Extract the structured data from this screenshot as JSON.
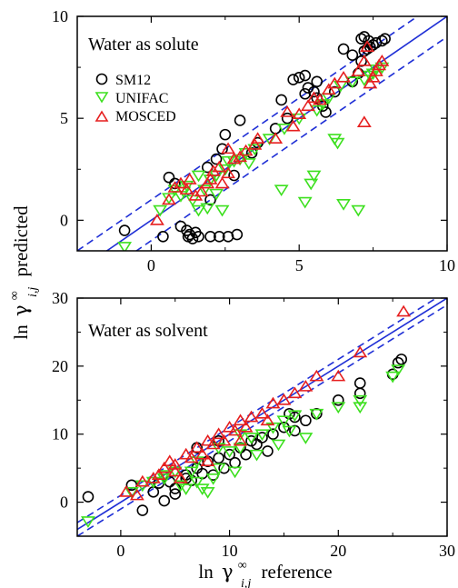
{
  "chart_data": [
    {
      "type": "scatter",
      "title": "",
      "annotation": "Water as solute",
      "xlim": [
        -2.5,
        10
      ],
      "ylim": [
        -1.5,
        10
      ],
      "xticks": [
        0,
        5,
        10
      ],
      "yticks": [
        0,
        5,
        10
      ],
      "xtick_labels": [
        "0",
        "5",
        "10"
      ],
      "ytick_labels": [
        "0",
        "5",
        "10"
      ],
      "legend_position": "top-left",
      "reference_lines": [
        {
          "slope": 1,
          "intercept": 0,
          "style": "solid",
          "color": "#1f2fd6"
        },
        {
          "slope": 1,
          "intercept": 1,
          "style": "dashed",
          "color": "#1f2fd6"
        },
        {
          "slope": 1,
          "intercept": -1,
          "style": "dashed",
          "color": "#1f2fd6"
        }
      ],
      "series": [
        {
          "name": "SM12",
          "marker": "circle",
          "color": "#000000",
          "points": [
            [
              -0.9,
              -0.5
            ],
            [
              0.4,
              -0.8
            ],
            [
              0.8,
              1.8
            ],
            [
              0.6,
              2.1
            ],
            [
              1.0,
              -0.3
            ],
            [
              1.2,
              -0.5
            ],
            [
              1.3,
              -0.7
            ],
            [
              1.4,
              -0.9
            ],
            [
              1.25,
              -0.8
            ],
            [
              1.5,
              -0.6
            ],
            [
              1.6,
              -0.8
            ],
            [
              2.0,
              -0.8
            ],
            [
              2.3,
              -0.8
            ],
            [
              2.6,
              -0.8
            ],
            [
              2.9,
              -0.7
            ],
            [
              1.9,
              2.6
            ],
            [
              2.2,
              3.0
            ],
            [
              2.4,
              3.5
            ],
            [
              2.5,
              4.2
            ],
            [
              2.8,
              2.2
            ],
            [
              3.0,
              4.9
            ],
            [
              3.4,
              3.3
            ],
            [
              3.6,
              3.8
            ],
            [
              2.0,
              1.0
            ],
            [
              4.2,
              4.5
            ],
            [
              4.4,
              5.9
            ],
            [
              4.6,
              5.0
            ],
            [
              4.8,
              6.9
            ],
            [
              5.0,
              7.0
            ],
            [
              5.2,
              6.2
            ],
            [
              5.3,
              6.5
            ],
            [
              5.5,
              6.3
            ],
            [
              5.6,
              6.8
            ],
            [
              5.8,
              5.6
            ],
            [
              5.2,
              7.1
            ],
            [
              5.6,
              6.0
            ],
            [
              5.9,
              5.3
            ],
            [
              6.2,
              6.3
            ],
            [
              6.5,
              8.4
            ],
            [
              6.8,
              6.8
            ],
            [
              7.0,
              7.2
            ],
            [
              7.1,
              7.8
            ],
            [
              7.2,
              8.3
            ],
            [
              6.8,
              8.1
            ],
            [
              7.3,
              8.4
            ],
            [
              7.4,
              8.5
            ],
            [
              7.5,
              8.6
            ],
            [
              7.2,
              9.0
            ],
            [
              7.6,
              8.7
            ],
            [
              7.8,
              8.8
            ],
            [
              7.9,
              8.9
            ],
            [
              7.1,
              8.9
            ],
            [
              7.35,
              8.8
            ]
          ]
        },
        {
          "name": "UNIFAC",
          "marker": "triangle-down",
          "color": "#3de01f",
          "points": [
            [
              -0.9,
              -1.3
            ],
            [
              0.3,
              0.5
            ],
            [
              0.6,
              1.1
            ],
            [
              0.8,
              1.5
            ],
            [
              1.0,
              1.2
            ],
            [
              1.2,
              1.7
            ],
            [
              1.4,
              1.0
            ],
            [
              1.6,
              0.5
            ],
            [
              1.8,
              1.5
            ],
            [
              2.0,
              2.0
            ],
            [
              2.2,
              2.2
            ],
            [
              2.5,
              2.5
            ],
            [
              2.8,
              2.9
            ],
            [
              3.0,
              3.0
            ],
            [
              3.2,
              3.3
            ],
            [
              1.6,
              2.2
            ],
            [
              1.9,
              0.6
            ],
            [
              2.2,
              1.3
            ],
            [
              2.4,
              0.5
            ],
            [
              2.6,
              2.9
            ],
            [
              3.5,
              3.5
            ],
            [
              4.0,
              4.0
            ],
            [
              4.4,
              1.5
            ],
            [
              4.5,
              4.5
            ],
            [
              5.0,
              5.0
            ],
            [
              5.2,
              0.9
            ],
            [
              5.4,
              1.8
            ],
            [
              5.5,
              2.2
            ],
            [
              5.6,
              5.4
            ],
            [
              5.8,
              5.7
            ],
            [
              6.0,
              6.0
            ],
            [
              6.2,
              4.0
            ],
            [
              6.3,
              3.8
            ],
            [
              6.4,
              6.6
            ],
            [
              6.5,
              0.8
            ],
            [
              6.8,
              6.8
            ],
            [
              7.0,
              0.5
            ],
            [
              7.2,
              6.9
            ],
            [
              7.4,
              7.1
            ],
            [
              7.5,
              7.2
            ],
            [
              7.8,
              7.5
            ],
            [
              7.6,
              7.4
            ],
            [
              1.1,
              1.4
            ],
            [
              3.3,
              2.8
            ]
          ]
        },
        {
          "name": "MOSCED",
          "marker": "triangle-up",
          "color": "#e61f1f",
          "points": [
            [
              0.2,
              0.0
            ],
            [
              0.6,
              1.0
            ],
            [
              0.8,
              1.6
            ],
            [
              1.0,
              1.8
            ],
            [
              1.2,
              1.5
            ],
            [
              1.3,
              2.0
            ],
            [
              1.5,
              1.2
            ],
            [
              1.7,
              1.4
            ],
            [
              1.9,
              1.8
            ],
            [
              2.1,
              2.4
            ],
            [
              2.3,
              2.6
            ],
            [
              2.4,
              1.8
            ],
            [
              2.6,
              2.3
            ],
            [
              2.8,
              3.0
            ],
            [
              3.0,
              3.1
            ],
            [
              3.2,
              3.4
            ],
            [
              3.5,
              3.7
            ],
            [
              3.6,
              4.0
            ],
            [
              4.2,
              4.0
            ],
            [
              4.6,
              5.3
            ],
            [
              4.8,
              4.6
            ],
            [
              5.0,
              5.2
            ],
            [
              5.3,
              5.6
            ],
            [
              5.5,
              6.0
            ],
            [
              5.7,
              5.9
            ],
            [
              6.0,
              6.4
            ],
            [
              6.2,
              6.7
            ],
            [
              6.5,
              7.0
            ],
            [
              7.0,
              7.3
            ],
            [
              7.2,
              4.8
            ],
            [
              7.4,
              6.7
            ],
            [
              7.5,
              7.0
            ],
            [
              7.6,
              7.3
            ],
            [
              7.7,
              7.6
            ],
            [
              7.8,
              7.8
            ],
            [
              7.3,
              8.5
            ],
            [
              7.2,
              7.8
            ],
            [
              2.6,
              3.5
            ],
            [
              2.0,
              2.0
            ]
          ]
        }
      ]
    },
    {
      "type": "scatter",
      "title": "",
      "annotation": "Water as solvent",
      "xlim": [
        -4,
        30
      ],
      "ylim": [
        -5,
        30
      ],
      "xticks": [
        0,
        10,
        20,
        30
      ],
      "yticks": [
        0,
        10,
        20,
        30
      ],
      "xtick_labels": [
        "0",
        "10",
        "20",
        "30"
      ],
      "ytick_labels": [
        "0",
        "10",
        "20",
        "30"
      ],
      "reference_lines": [
        {
          "slope": 1,
          "intercept": 0,
          "style": "solid",
          "color": "#1f2fd6"
        },
        {
          "slope": 1,
          "intercept": 1,
          "style": "dashed",
          "color": "#1f2fd6"
        },
        {
          "slope": 1,
          "intercept": -1,
          "style": "dashed",
          "color": "#1f2fd6"
        }
      ],
      "series": [
        {
          "name": "SM12",
          "marker": "circle",
          "color": "#000000",
          "points": [
            [
              -3,
              0.8
            ],
            [
              1,
              2.5
            ],
            [
              2,
              -1.2
            ],
            [
              3,
              1.5
            ],
            [
              4,
              0.2
            ],
            [
              4.5,
              3.0
            ],
            [
              5,
              2.0
            ],
            [
              5,
              1.2
            ],
            [
              6,
              4.0
            ],
            [
              6.5,
              3.2
            ],
            [
              7,
              5.0
            ],
            [
              7.5,
              4.2
            ],
            [
              8,
              6.0
            ],
            [
              8.5,
              4.0
            ],
            [
              9,
              6.5
            ],
            [
              9.5,
              5.0
            ],
            [
              10,
              7.0
            ],
            [
              10.5,
              5.8
            ],
            [
              11,
              8.0
            ],
            [
              11.5,
              7.0
            ],
            [
              12,
              9.0
            ],
            [
              12.5,
              8.5
            ],
            [
              13,
              9.5
            ],
            [
              13.5,
              7.5
            ],
            [
              14,
              10.0
            ],
            [
              15,
              11.0
            ],
            [
              15.5,
              13.0
            ],
            [
              16,
              12.5
            ],
            [
              16,
              10.5
            ],
            [
              17,
              12.0
            ],
            [
              18,
              13.0
            ],
            [
              20,
              15.0
            ],
            [
              22,
              17.5
            ],
            [
              22,
              16.0
            ],
            [
              25,
              18.8
            ],
            [
              25.5,
              20.5
            ],
            [
              25.8,
              21.0
            ],
            [
              7,
              8.0
            ],
            [
              9,
              9.0
            ],
            [
              3.5,
              2.8
            ],
            [
              6,
              3.5
            ]
          ]
        },
        {
          "name": "UNIFAC",
          "marker": "triangle-down",
          "color": "#3de01f",
          "points": [
            [
              -3,
              -2.8
            ],
            [
              1,
              1.5
            ],
            [
              2,
              2.5
            ],
            [
              3,
              3.0
            ],
            [
              4,
              4.0
            ],
            [
              5,
              4.5
            ],
            [
              5.5,
              2.5
            ],
            [
              6,
              2.0
            ],
            [
              6.5,
              4.5
            ],
            [
              7,
              3.0
            ],
            [
              7.5,
              2.0
            ],
            [
              8,
              1.5
            ],
            [
              8.5,
              3.5
            ],
            [
              9,
              5.0
            ],
            [
              10,
              7.5
            ],
            [
              10.5,
              4.5
            ],
            [
              11,
              8.0
            ],
            [
              12,
              9.5
            ],
            [
              12.5,
              7.0
            ],
            [
              13,
              10.0
            ],
            [
              14,
              11.0
            ],
            [
              14.5,
              8.5
            ],
            [
              15,
              12.0
            ],
            [
              15.5,
              10.5
            ],
            [
              16,
              12.8
            ],
            [
              17,
              9.5
            ],
            [
              18,
              13.0
            ],
            [
              20,
              14.0
            ],
            [
              22,
              15.0
            ],
            [
              22,
              14.0
            ],
            [
              25,
              18.5
            ],
            [
              25.5,
              19.5
            ],
            [
              4,
              3.5
            ],
            [
              7,
              6.0
            ],
            [
              9,
              8.0
            ],
            [
              11,
              10.0
            ]
          ]
        },
        {
          "name": "MOSCED",
          "marker": "triangle-up",
          "color": "#e61f1f",
          "points": [
            [
              0.5,
              1.5
            ],
            [
              1.5,
              1.0
            ],
            [
              2,
              3.0
            ],
            [
              3,
              3.5
            ],
            [
              3.5,
              4.0
            ],
            [
              4,
              5.0
            ],
            [
              4.5,
              6.0
            ],
            [
              5,
              5.5
            ],
            [
              5.5,
              3.5
            ],
            [
              6,
              7.0
            ],
            [
              6.5,
              6.5
            ],
            [
              7,
              8.0
            ],
            [
              7.5,
              7.0
            ],
            [
              8,
              9.0
            ],
            [
              8.5,
              8.5
            ],
            [
              9,
              10.0
            ],
            [
              9.5,
              9.0
            ],
            [
              10,
              11.0
            ],
            [
              10.5,
              10.5
            ],
            [
              11,
              12.0
            ],
            [
              11.5,
              11.0
            ],
            [
              12,
              12.5
            ],
            [
              13,
              13.0
            ],
            [
              13.5,
              12.0
            ],
            [
              14,
              14.5
            ],
            [
              15,
              15.0
            ],
            [
              16,
              16.0
            ],
            [
              17,
              17.0
            ],
            [
              18,
              18.5
            ],
            [
              20,
              18.5
            ],
            [
              22,
              22.0
            ],
            [
              26,
              28.0
            ],
            [
              5,
              4.5
            ],
            [
              8,
              6.0
            ],
            [
              11,
              9.0
            ]
          ]
        }
      ]
    }
  ],
  "axes": {
    "ylabel_main": "ln",
    "ylabel_symbol": "γ",
    "ylabel_sup": "∞",
    "ylabel_sub": "i,j",
    "ylabel_tail": "predicted",
    "xlabel_main": "ln",
    "xlabel_symbol": "γ",
    "xlabel_sup": "∞",
    "xlabel_sub": "i,j",
    "xlabel_tail": "reference"
  }
}
